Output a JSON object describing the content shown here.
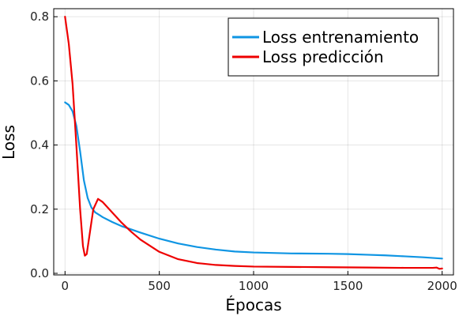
{
  "chart_data": {
    "type": "line",
    "xlabel": "Épocas",
    "ylabel": "Loss",
    "xlim": [
      -60,
      2060
    ],
    "ylim": [
      -0.005,
      0.825
    ],
    "xticks": [
      0,
      500,
      1000,
      1500,
      2000
    ],
    "xtick_labels": [
      "0",
      "500",
      "1000",
      "1500",
      "2000"
    ],
    "yticks": [
      0.0,
      0.2,
      0.4,
      0.6,
      0.8
    ],
    "ytick_labels": [
      "0.0",
      "0.2",
      "0.4",
      "0.6",
      "0.8"
    ],
    "grid": true,
    "legend_position": "top-right",
    "series": [
      {
        "name": "Loss entrenamiento",
        "color": "#0f95e3",
        "x": [
          0,
          20,
          40,
          60,
          80,
          100,
          120,
          140,
          160,
          200,
          250,
          300,
          350,
          400,
          500,
          600,
          700,
          800,
          900,
          1000,
          1200,
          1400,
          1500,
          1600,
          1700,
          1800,
          1900,
          2000
        ],
        "y": [
          0.533,
          0.525,
          0.505,
          0.46,
          0.38,
          0.29,
          0.235,
          0.205,
          0.19,
          0.175,
          0.16,
          0.147,
          0.137,
          0.127,
          0.108,
          0.093,
          0.082,
          0.074,
          0.068,
          0.065,
          0.062,
          0.061,
          0.06,
          0.058,
          0.056,
          0.053,
          0.05,
          0.046
        ]
      },
      {
        "name": "Loss predicción",
        "color": "#ee0000",
        "x": [
          0,
          20,
          40,
          60,
          80,
          95,
          105,
          115,
          130,
          150,
          175,
          200,
          250,
          300,
          350,
          400,
          500,
          600,
          700,
          800,
          900,
          1000,
          1200,
          1400,
          1600,
          1800,
          1950,
          1970,
          1985,
          2000
        ],
        "y": [
          0.8,
          0.715,
          0.59,
          0.4,
          0.2,
          0.085,
          0.055,
          0.06,
          0.12,
          0.2,
          0.232,
          0.222,
          0.19,
          0.158,
          0.13,
          0.105,
          0.067,
          0.044,
          0.032,
          0.026,
          0.023,
          0.021,
          0.02,
          0.019,
          0.018,
          0.017,
          0.017,
          0.018,
          0.014,
          0.015
        ]
      }
    ]
  }
}
